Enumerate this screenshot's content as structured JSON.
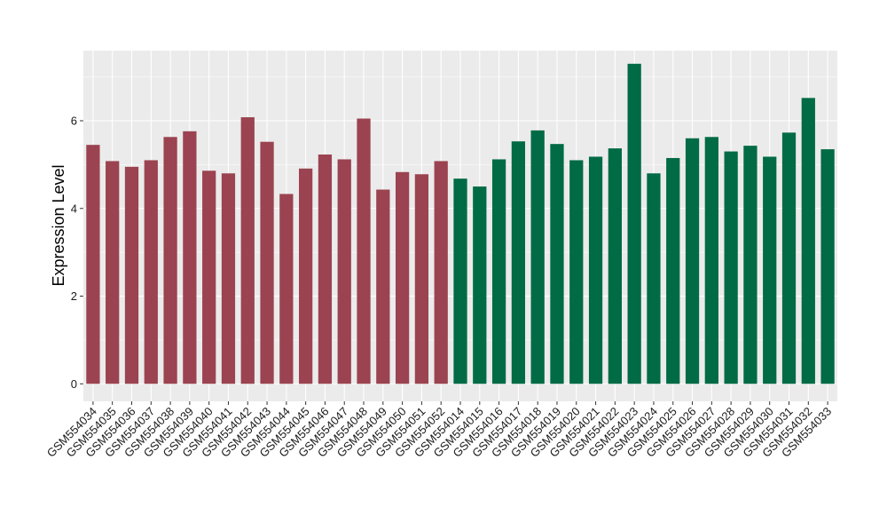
{
  "chart_data": {
    "type": "bar",
    "title": "",
    "xlabel": "",
    "ylabel": "Expression Level",
    "ylim": [
      -0.4,
      7.6
    ],
    "yticks": [
      0,
      2,
      4,
      6
    ],
    "grid": true,
    "colors": {
      "panel_bg": "#EBEBEB",
      "grid": "#FFFFFF",
      "group1": "#9B4350",
      "group2": "#006B45"
    },
    "categories": [
      "GSM554034",
      "GSM554035",
      "GSM554036",
      "GSM554037",
      "GSM554038",
      "GSM554039",
      "GSM554040",
      "GSM554041",
      "GSM554042",
      "GSM554043",
      "GSM554044",
      "GSM554045",
      "GSM554046",
      "GSM554047",
      "GSM554048",
      "GSM554049",
      "GSM554050",
      "GSM554051",
      "GSM554052",
      "GSM554014",
      "GSM554015",
      "GSM554016",
      "GSM554017",
      "GSM554018",
      "GSM554019",
      "GSM554020",
      "GSM554021",
      "GSM554022",
      "GSM554023",
      "GSM554024",
      "GSM554025",
      "GSM554026",
      "GSM554027",
      "GSM554028",
      "GSM554029",
      "GSM554030",
      "GSM554031",
      "GSM554032",
      "GSM554033"
    ],
    "values": [
      5.45,
      5.08,
      4.95,
      5.1,
      5.63,
      5.76,
      4.86,
      4.8,
      6.08,
      5.52,
      4.33,
      4.91,
      5.23,
      5.12,
      6.05,
      4.43,
      4.83,
      4.78,
      5.08,
      4.68,
      4.5,
      5.12,
      5.53,
      5.78,
      5.47,
      5.1,
      5.18,
      5.37,
      7.3,
      4.8,
      5.15,
      5.6,
      5.63,
      5.3,
      5.43,
      5.18,
      5.73,
      6.52,
      5.35
    ],
    "groups": [
      1,
      1,
      1,
      1,
      1,
      1,
      1,
      1,
      1,
      1,
      1,
      1,
      1,
      1,
      1,
      1,
      1,
      1,
      1,
      2,
      2,
      2,
      2,
      2,
      2,
      2,
      2,
      2,
      2,
      2,
      2,
      2,
      2,
      2,
      2,
      2,
      2,
      2,
      2
    ]
  }
}
